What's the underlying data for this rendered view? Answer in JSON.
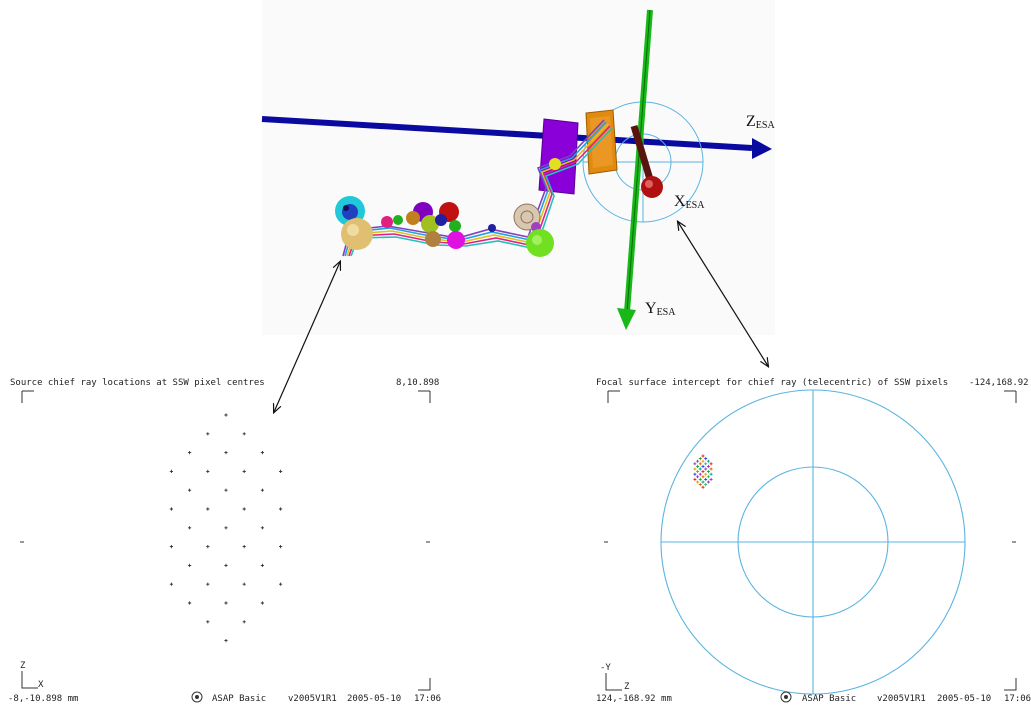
{
  "axes3d": {
    "z": {
      "main": "Z",
      "sub": "ESA"
    },
    "x": {
      "main": "X",
      "sub": "ESA"
    },
    "y": {
      "main": "Y",
      "sub": "ESA"
    }
  },
  "left_panel": {
    "title": "Source chief ray locations at SSW pixel centres",
    "corner_top_right": "8,10.898",
    "corner_bottom_left": "-8,-10.898 mm",
    "axis_v": "Z",
    "axis_h": "X",
    "software": "ASAP Basic",
    "version": "v2005V1R1",
    "date": "2005-05-10",
    "time": "17:06",
    "pixels_per_row": [
      1,
      2,
      3,
      4,
      3,
      4,
      3,
      4,
      3,
      4,
      3,
      2,
      1
    ]
  },
  "right_panel": {
    "title": "Focal surface intercept for chief ray (telecentric) of SSW pixels",
    "corner_top_right": "-124,168.92",
    "corner_bottom_left": "124,-168.92 mm",
    "axis_v": "-Y",
    "axis_h": "Z",
    "software": "ASAP Basic",
    "version": "v2005V1R1",
    "date": "2005-05-10",
    "time": "17:06"
  },
  "colors": {
    "z_axis": "#0a0aa0",
    "y_axis": "#18b818",
    "focal_circle": "#5ab4e0",
    "purple_block": "#8a00d8",
    "orange_block": "#e08a10",
    "label_text": "#111111"
  }
}
